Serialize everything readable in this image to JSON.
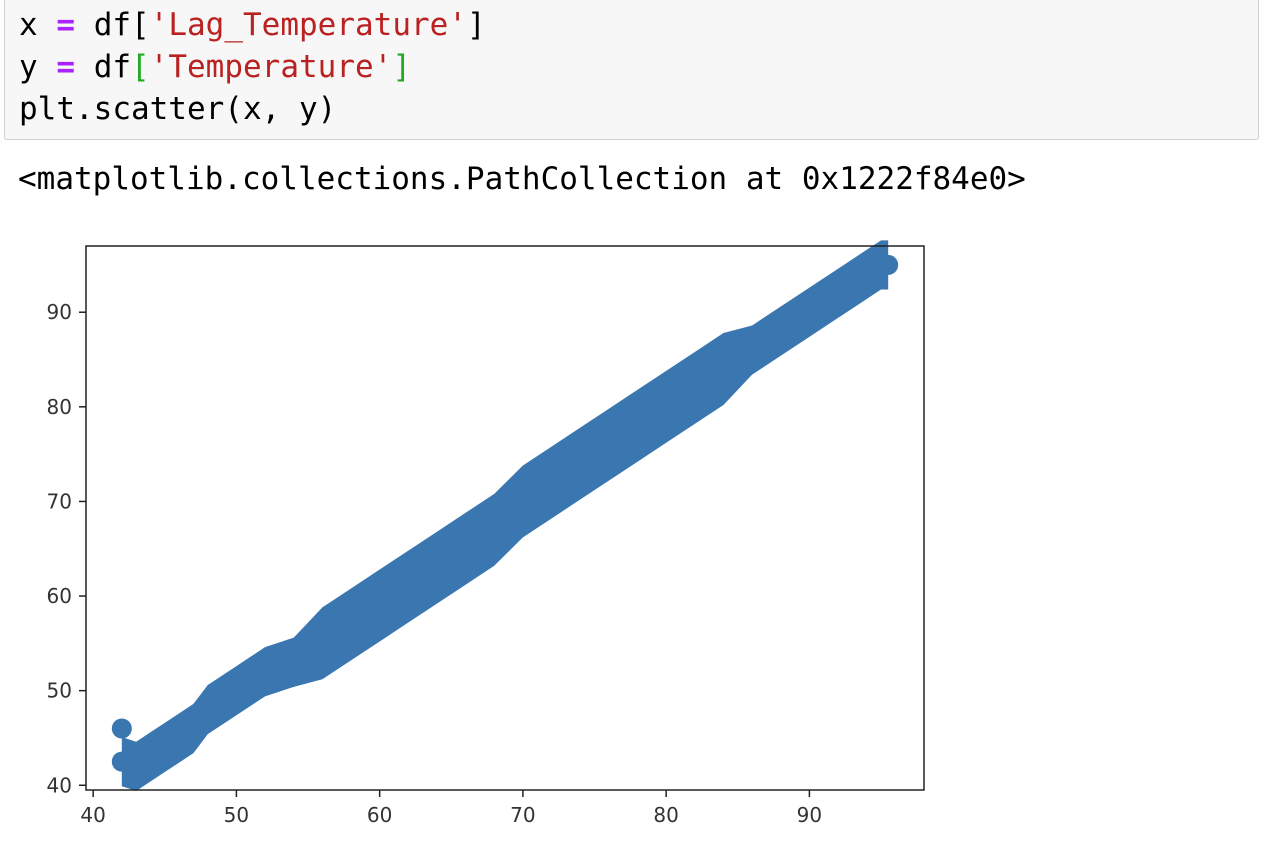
{
  "code": {
    "line1": {
      "var": "x",
      "op": "=",
      "obj": "df[",
      "str": "'Lag_Temperature'",
      "close": "]"
    },
    "line2": {
      "var": "y",
      "op": "=",
      "obj": "df",
      "open": "[",
      "str": "'Temperature'",
      "close": "]"
    },
    "line3": {
      "text": "plt.scatter(x, y)"
    }
  },
  "output": {
    "repr": "<matplotlib.collections.PathCollection at 0x1222f84e0>"
  },
  "chart_data": {
    "type": "scatter",
    "title": "",
    "xlabel": "",
    "ylabel": "",
    "xlim": [
      39.5,
      98
    ],
    "ylim": [
      39.5,
      97
    ],
    "xticks": [
      "40",
      "50",
      "60",
      "70",
      "80",
      "90"
    ],
    "yticks": [
      "40",
      "50",
      "60",
      "70",
      "80",
      "90"
    ],
    "grid": false,
    "color": "#3a76af",
    "series": [
      {
        "points": [
          [
            42,
            42.5
          ],
          [
            42,
            46
          ],
          [
            43,
            42
          ],
          [
            44,
            43
          ],
          [
            45,
            44
          ],
          [
            46,
            45
          ],
          [
            47,
            46
          ],
          [
            48,
            48
          ],
          [
            50,
            50
          ],
          [
            52,
            52
          ],
          [
            54,
            53
          ],
          [
            56,
            55
          ],
          [
            58,
            57
          ],
          [
            60,
            59
          ],
          [
            62,
            61
          ],
          [
            64,
            63
          ],
          [
            66,
            65
          ],
          [
            68,
            67
          ],
          [
            70,
            70
          ],
          [
            72,
            72
          ],
          [
            74,
            74
          ],
          [
            76,
            76
          ],
          [
            78,
            78
          ],
          [
            80,
            80
          ],
          [
            82,
            82
          ],
          [
            84,
            84
          ],
          [
            86,
            86
          ],
          [
            88,
            88
          ],
          [
            90,
            90
          ],
          [
            92,
            92
          ],
          [
            93,
            93
          ],
          [
            94,
            94
          ],
          [
            95,
            95
          ],
          [
            95.5,
            95
          ]
        ]
      }
    ]
  }
}
